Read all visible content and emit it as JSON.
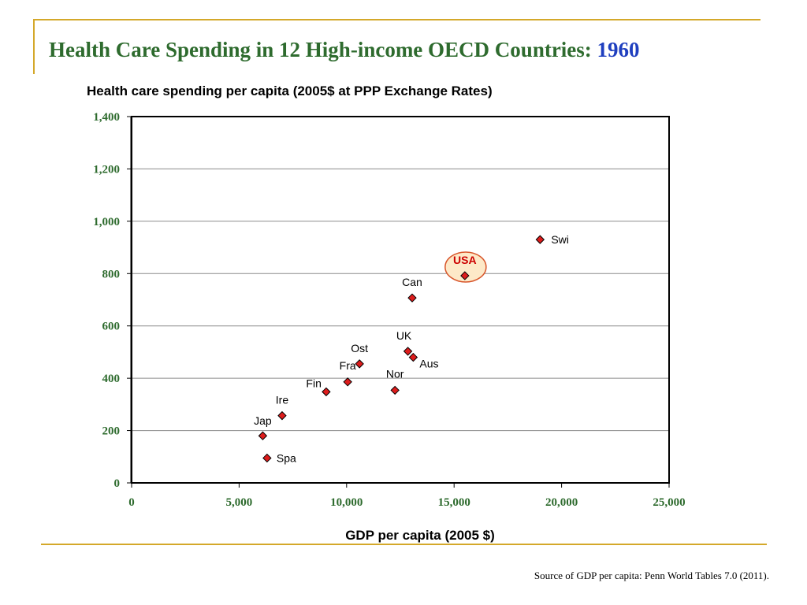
{
  "slide": {
    "title_main": "Health Care Spending in 12 High-income OECD Countries: ",
    "title_year": "1960",
    "source": "Source of GDP per capita: Penn World Tables 7.0 (2011)."
  },
  "colors": {
    "accent_rule": "#d4a82a",
    "title_green": "#2e6b2e",
    "title_blue": "#1f3fbf",
    "marker_fill": "#dd1c1c",
    "highlight_fill": "#fde9c8",
    "highlight_stroke": "#d8552a",
    "usa_label": "#cc0000"
  },
  "chart_data": {
    "type": "scatter",
    "title": "Health care spending per capita (2005$ at PPP Exchange Rates)",
    "xlabel": "GDP per capita (2005 $)",
    "ylabel": "",
    "xlim": [
      0,
      25000
    ],
    "ylim": [
      0,
      1400
    ],
    "x_ticks": [
      0,
      5000,
      10000,
      15000,
      20000,
      25000
    ],
    "x_tick_labels": [
      "0",
      "5,000",
      "10,000",
      "15,000",
      "20,000",
      "25,000"
    ],
    "y_ticks": [
      0,
      200,
      400,
      600,
      800,
      1000,
      1200,
      1400
    ],
    "y_tick_labels": [
      "0",
      "200",
      "400",
      "600",
      "800",
      "1,000",
      "1,200",
      "1,400"
    ],
    "grid": "horizontal",
    "legend": "none",
    "highlight": "USA",
    "points": [
      {
        "label": "Spa",
        "x": 6300,
        "y": 95
      },
      {
        "label": "Jap",
        "x": 6100,
        "y": 180
      },
      {
        "label": "Ire",
        "x": 7000,
        "y": 257
      },
      {
        "label": "Fin",
        "x": 9050,
        "y": 348
      },
      {
        "label": "Fra",
        "x": 10050,
        "y": 386
      },
      {
        "label": "Ost",
        "x": 10600,
        "y": 455
      },
      {
        "label": "Nor",
        "x": 12250,
        "y": 354
      },
      {
        "label": "UK",
        "x": 12850,
        "y": 503
      },
      {
        "label": "Aus",
        "x": 13100,
        "y": 480
      },
      {
        "label": "Can",
        "x": 13050,
        "y": 707
      },
      {
        "label": "USA",
        "x": 15500,
        "y": 792
      },
      {
        "label": "Swi",
        "x": 19000,
        "y": 930
      }
    ]
  }
}
